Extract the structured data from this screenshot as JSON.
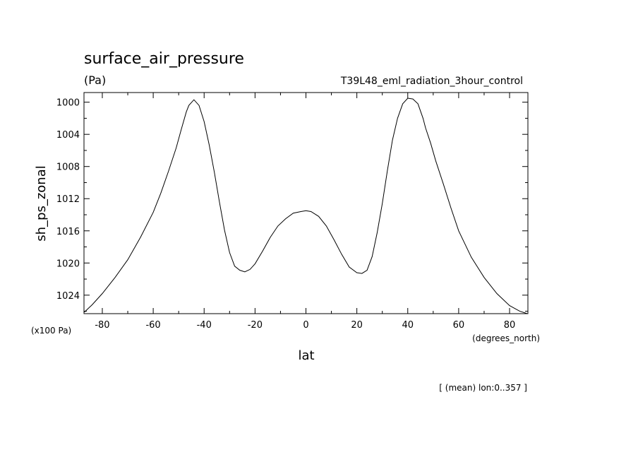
{
  "chart_data": {
    "type": "line",
    "title": "surface_air_pressure",
    "units": "(Pa)",
    "experiment": "T39L48_eml_radiation_3hour_control",
    "ylabel": "sh_ps_zonal",
    "y_scale_note": "(x100 Pa)",
    "xlabel": "lat",
    "x_units": "(degrees_north)",
    "footer": "[ (mean) lon:0..357 ]",
    "xlim": [
      -87.2,
      87.2
    ],
    "ylim": [
      1026.3,
      998.8
    ],
    "y_inverted": true,
    "grid": false,
    "x_ticks": [
      -80,
      -60,
      -40,
      -20,
      0,
      20,
      40,
      60,
      80
    ],
    "x_tick_labels": [
      "-80",
      "-60",
      "-40",
      "-20",
      "0",
      "20",
      "40",
      "60",
      "80"
    ],
    "y_ticks": [
      1000,
      1004,
      1008,
      1012,
      1016,
      1020,
      1024
    ],
    "y_tick_labels": [
      "1000",
      "1004",
      "1008",
      "1012",
      "1016",
      "1020",
      "1024"
    ],
    "series": [
      {
        "x": [
          -87,
          -84,
          -80,
          -75,
          -70,
          -65,
          -60,
          -57,
          -54,
          -51,
          -49,
          -47,
          -46,
          -44,
          -42,
          -40,
          -38,
          -36,
          -34,
          -32,
          -30,
          -28,
          -26,
          -24,
          -22,
          -20,
          -17,
          -14,
          -11,
          -8,
          -5,
          -2,
          0,
          2,
          5,
          8,
          11,
          14,
          17,
          20,
          22,
          24,
          26,
          28,
          30,
          32,
          34,
          36,
          38,
          40,
          42,
          44,
          46,
          47,
          49,
          51,
          54,
          57,
          60,
          65,
          70,
          75,
          80,
          84,
          87
        ],
        "y": [
          1026.1,
          1025.2,
          1023.8,
          1021.8,
          1019.6,
          1016.8,
          1013.7,
          1011.3,
          1008.6,
          1005.7,
          1003.4,
          1001.2,
          1000.4,
          999.7,
          1000.4,
          1002.4,
          1005.3,
          1008.7,
          1012.4,
          1015.9,
          1018.7,
          1020.4,
          1020.9,
          1021.1,
          1020.8,
          1020.1,
          1018.5,
          1016.8,
          1015.4,
          1014.5,
          1013.8,
          1013.6,
          1013.5,
          1013.6,
          1014.2,
          1015.4,
          1017.1,
          1018.9,
          1020.5,
          1021.2,
          1021.3,
          1020.9,
          1019.2,
          1016.2,
          1012.6,
          1008.5,
          1004.7,
          1002.0,
          1000.2,
          999.5,
          999.6,
          1000.2,
          1002.0,
          1003.2,
          1005.1,
          1007.3,
          1010.2,
          1013.2,
          1016.0,
          1019.3,
          1021.8,
          1023.8,
          1025.3,
          1026.0,
          1026.3
        ]
      }
    ]
  }
}
